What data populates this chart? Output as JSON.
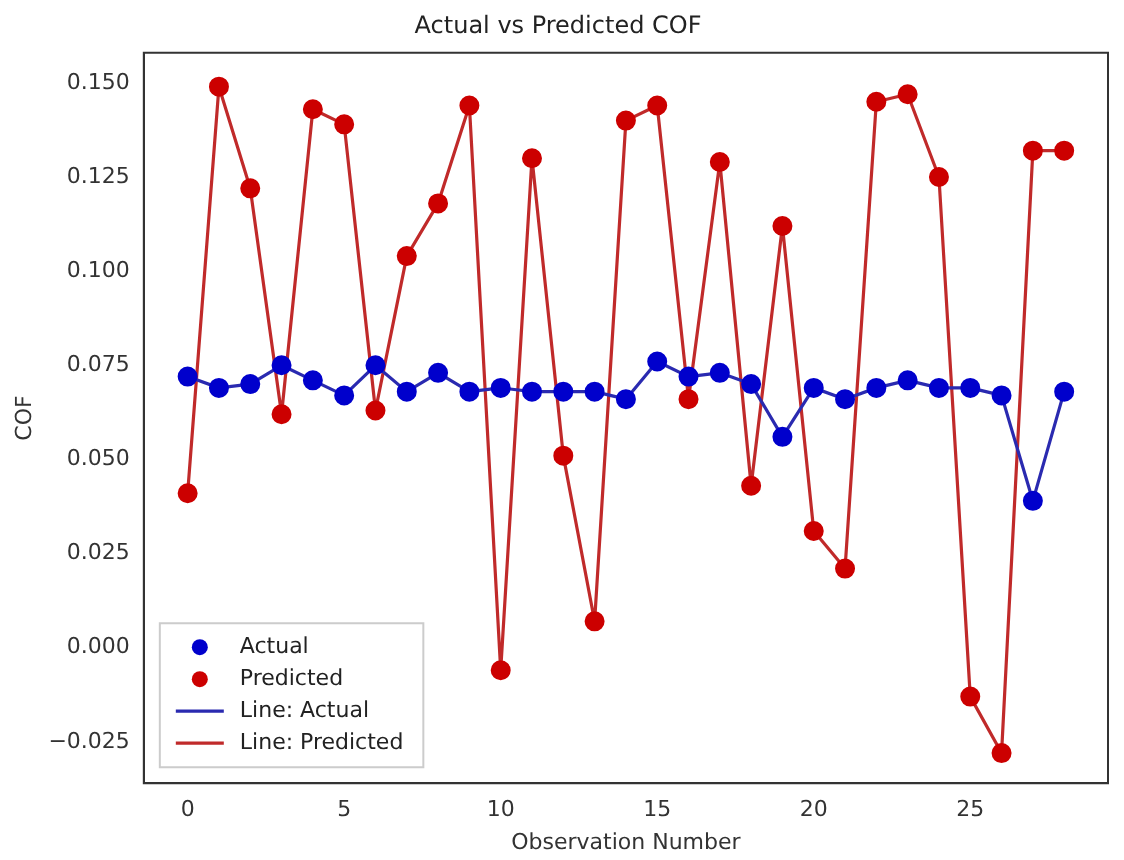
{
  "chart_data": {
    "type": "scatter",
    "title": "Actual vs Predicted COF",
    "xlabel": "Observation Number",
    "ylabel": "COF",
    "x": [
      0,
      1,
      2,
      3,
      4,
      5,
      6,
      7,
      8,
      9,
      10,
      11,
      12,
      13,
      14,
      15,
      16,
      17,
      18,
      19,
      20,
      21,
      22,
      23,
      24,
      25,
      26,
      27,
      28
    ],
    "series": [
      {
        "name": "Actual",
        "type": "scatter",
        "marker": "circle",
        "color": "#0000cc",
        "values": [
          0.072,
          0.069,
          0.07,
          0.075,
          0.071,
          0.067,
          0.075,
          0.068,
          0.073,
          0.068,
          0.069,
          0.068,
          0.068,
          0.068,
          0.066,
          0.076,
          0.072,
          0.073,
          0.07,
          0.056,
          0.069,
          0.066,
          0.069,
          0.071,
          0.069,
          0.069,
          0.067,
          0.039,
          0.068
        ]
      },
      {
        "name": "Predicted",
        "type": "scatter",
        "marker": "circle",
        "color": "#cc0000",
        "values": [
          0.041,
          0.149,
          0.122,
          0.062,
          0.143,
          0.139,
          0.063,
          0.104,
          0.118,
          0.144,
          -0.006,
          0.13,
          0.051,
          0.007,
          0.14,
          0.144,
          0.066,
          0.129,
          0.043,
          0.112,
          0.031,
          0.021,
          0.145,
          0.147,
          0.125,
          -0.013,
          -0.028,
          0.132,
          0.132
        ]
      },
      {
        "name": "Line: Actual",
        "type": "line",
        "marker": "none",
        "line_style": "solid",
        "color": "#2a2ab0",
        "values": [
          0.072,
          0.069,
          0.07,
          0.075,
          0.071,
          0.067,
          0.075,
          0.068,
          0.073,
          0.068,
          0.069,
          0.068,
          0.068,
          0.068,
          0.066,
          0.076,
          0.072,
          0.073,
          0.07,
          0.056,
          0.069,
          0.066,
          0.069,
          0.071,
          0.069,
          0.069,
          0.067,
          0.039,
          0.068
        ]
      },
      {
        "name": "Line: Predicted",
        "type": "line",
        "marker": "none",
        "line_style": "solid",
        "color": "#c02a2a",
        "values": [
          0.041,
          0.149,
          0.122,
          0.062,
          0.143,
          0.139,
          0.063,
          0.104,
          0.118,
          0.144,
          -0.006,
          0.13,
          0.051,
          0.007,
          0.14,
          0.144,
          0.066,
          0.129,
          0.043,
          0.112,
          0.031,
          0.021,
          0.145,
          0.147,
          0.125,
          -0.013,
          -0.028,
          0.132,
          0.132
        ]
      }
    ],
    "xlim": [
      -1.4,
      29.4
    ],
    "xticks": [
      0,
      5,
      10,
      15,
      20,
      25
    ],
    "ylim": [
      -0.036,
      0.158
    ],
    "yticks": [
      {
        "value": -0.025,
        "label": "−0.025"
      },
      {
        "value": 0,
        "label": "0.000"
      },
      {
        "value": 0.025,
        "label": "0.025"
      },
      {
        "value": 0.05,
        "label": "0.050"
      },
      {
        "value": 0.075,
        "label": "0.075"
      },
      {
        "value": 0.1,
        "label": "0.100"
      },
      {
        "value": 0.125,
        "label": "0.125"
      },
      {
        "value": 0.15,
        "label": "0.150"
      }
    ],
    "grid": false,
    "legend": "bottom left"
  }
}
